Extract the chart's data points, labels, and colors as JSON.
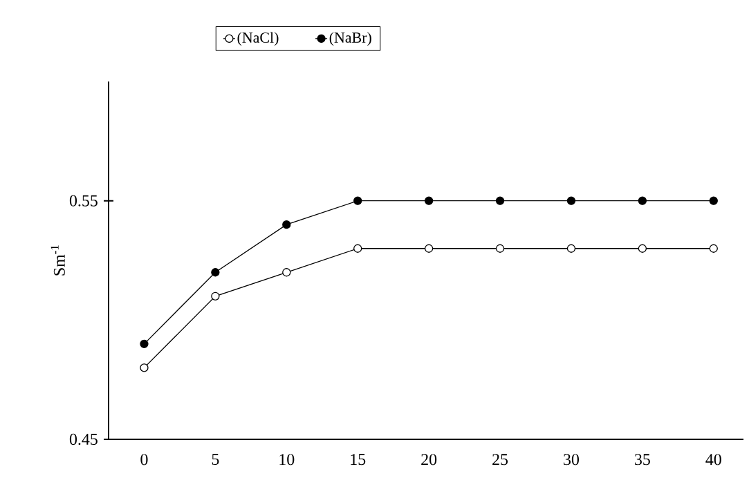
{
  "chart_data": {
    "type": "line",
    "ylabel": "Sm$^{-1}$",
    "categories": [
      "0",
      "5",
      "10",
      "15",
      "20",
      "25",
      "30",
      "35",
      "40"
    ],
    "series": [
      {
        "name": "(NaCl)",
        "color": "#000000",
        "values": [
          0.48,
          0.51,
          0.52,
          0.53,
          0.53,
          0.53,
          0.53,
          0.53,
          0.53
        ]
      },
      {
        "name": "(NaBr)",
        "color": "#000000",
        "values": [
          0.49,
          0.52,
          0.54,
          0.55,
          0.55,
          0.55,
          0.55,
          0.55,
          0.55
        ]
      }
    ],
    "ylim": [
      0.45,
      0.6
    ],
    "yticks": [
      0.45,
      0.55
    ],
    "grid": false,
    "legend": "top",
    "marker": "circle",
    "line_style": "solid"
  }
}
